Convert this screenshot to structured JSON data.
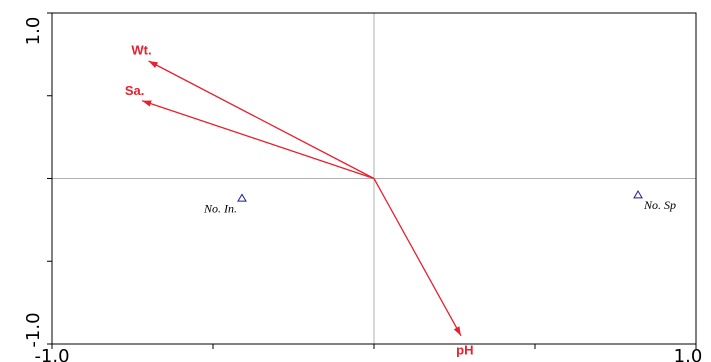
{
  "chart_data": {
    "type": "scatter",
    "title": "",
    "xlabel": "",
    "ylabel": "",
    "xlim": [
      -1.0,
      1.0
    ],
    "ylim": [
      -1.0,
      1.0
    ],
    "x_tick_labels": [
      "-1.0",
      "1.0"
    ],
    "y_tick_labels": [
      "-1.0",
      "1.0"
    ],
    "x_ticks": [
      -1.0,
      -0.5,
      0.0,
      0.5,
      1.0
    ],
    "y_ticks": [
      -1.0,
      -0.5,
      0.0,
      0.5,
      1.0
    ],
    "zero_lines": true,
    "vectors": [
      {
        "label": "Wt.",
        "x": -0.7,
        "y": 0.71
      },
      {
        "label": "Sa.",
        "x": -0.72,
        "y": 0.47
      },
      {
        "label": "pH",
        "x": 0.27,
        "y": -0.95
      }
    ],
    "points": [
      {
        "label": "No. In.",
        "x": -0.41,
        "y": -0.12
      },
      {
        "label": "No. Sp",
        "x": 0.82,
        "y": -0.1
      }
    ],
    "colors": {
      "vectors": "#e8202e",
      "points": "#1a1aa0",
      "axis": "#000000",
      "zero": "#b0b0b0"
    }
  }
}
